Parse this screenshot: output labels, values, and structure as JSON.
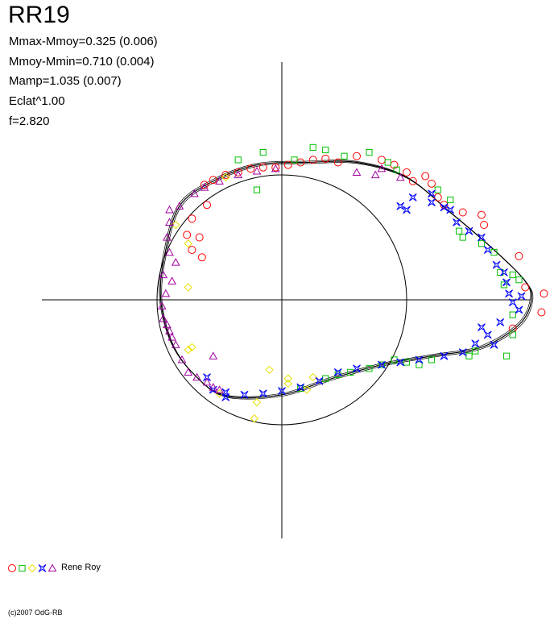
{
  "header": {
    "title": "RR19",
    "stats": [
      "Mmax-Mmoy=0.325 (0.006)",
      "Mmoy-Mmin=0.710 (0.004)",
      "Mamp=1.035 (0.007)",
      "Eclat^1.00",
      "f=2.820"
    ]
  },
  "legend": {
    "label": "Rene Roy",
    "symbols": [
      {
        "name": "circle",
        "color": "#ff0000"
      },
      {
        "name": "square",
        "color": "#00c000"
      },
      {
        "name": "diamond",
        "color": "#e8e000"
      },
      {
        "name": "star",
        "color": "#0000ff"
      },
      {
        "name": "triangle",
        "color": "#a000a0"
      }
    ]
  },
  "footer": {
    "copyright": "(c)2007 OdG-RB"
  },
  "chart_data": {
    "type": "scatter",
    "x_range": [
      -1.95,
      2.15
    ],
    "y_range": [
      -1.95,
      1.95
    ],
    "reference_circle_radius": 1.0,
    "curve_color": "#000000",
    "fit_curve": [
      [
        -0.82,
        0.75
      ],
      [
        -0.55,
        0.95
      ],
      [
        -0.2,
        1.08
      ],
      [
        0.2,
        1.1
      ],
      [
        0.6,
        1.1
      ],
      [
        1.0,
        0.98
      ],
      [
        1.35,
        0.7
      ],
      [
        1.7,
        0.4
      ],
      [
        1.95,
        0.15
      ],
      [
        2.0,
        0.0
      ],
      [
        1.9,
        -0.2
      ],
      [
        1.6,
        -0.38
      ],
      [
        1.2,
        -0.45
      ],
      [
        0.8,
        -0.52
      ],
      [
        0.4,
        -0.63
      ],
      [
        0.0,
        -0.76
      ],
      [
        -0.45,
        -0.77
      ],
      [
        -0.7,
        -0.6
      ],
      [
        -0.88,
        -0.35
      ],
      [
        -0.97,
        0.0
      ],
      [
        -0.94,
        0.35
      ],
      [
        -0.82,
        0.75
      ]
    ],
    "series": [
      {
        "symbol": "circle",
        "color": "#ff0000",
        "points": [
          [
            -0.62,
            0.92
          ],
          [
            -0.55,
            0.96
          ],
          [
            -0.45,
            1.0
          ],
          [
            -0.35,
            1.02
          ],
          [
            -0.25,
            1.05
          ],
          [
            -0.15,
            1.06
          ],
          [
            -0.05,
            1.06
          ],
          [
            0.05,
            1.08
          ],
          [
            0.15,
            1.1
          ],
          [
            0.25,
            1.12
          ],
          [
            0.35,
            1.13
          ],
          [
            0.45,
            1.1
          ],
          [
            0.6,
            1.15
          ],
          [
            0.8,
            1.12
          ],
          [
            0.9,
            1.08
          ],
          [
            1.0,
            1.02
          ],
          [
            1.05,
            0.95
          ],
          [
            1.15,
            0.99
          ],
          [
            1.2,
            0.93
          ],
          [
            1.25,
            0.82
          ],
          [
            1.3,
            0.76
          ],
          [
            1.45,
            0.7
          ],
          [
            1.6,
            0.68
          ],
          [
            1.62,
            0.6
          ],
          [
            -0.72,
            0.65
          ],
          [
            -0.6,
            0.76
          ],
          [
            -0.76,
            0.52
          ],
          [
            -0.66,
            0.5
          ],
          [
            -0.64,
            0.34
          ],
          [
            -0.72,
            0.4
          ],
          [
            1.9,
            0.35
          ],
          [
            1.95,
            0.1
          ],
          [
            2.08,
            -0.1
          ],
          [
            2.1,
            0.05
          ],
          [
            1.85,
            -0.23
          ]
        ]
      },
      {
        "symbol": "square",
        "color": "#00c000",
        "points": [
          [
            -0.15,
            1.18
          ],
          [
            -0.35,
            1.12
          ],
          [
            -0.2,
            0.88
          ],
          [
            0.1,
            1.12
          ],
          [
            0.25,
            1.22
          ],
          [
            0.35,
            1.2
          ],
          [
            0.5,
            1.15
          ],
          [
            0.7,
            1.18
          ],
          [
            0.85,
            1.1
          ],
          [
            0.92,
            1.04
          ],
          [
            1.25,
            0.88
          ],
          [
            1.35,
            0.8
          ],
          [
            1.42,
            0.55
          ],
          [
            1.45,
            0.5
          ],
          [
            1.6,
            0.45
          ],
          [
            1.7,
            0.38
          ],
          [
            1.75,
            0.22
          ],
          [
            1.78,
            0.12
          ],
          [
            1.85,
            0.2
          ],
          [
            1.9,
            0.16
          ],
          [
            1.85,
            -0.28
          ],
          [
            1.8,
            -0.45
          ],
          [
            1.5,
            -0.45
          ],
          [
            1.2,
            -0.48
          ],
          [
            1.0,
            -0.5
          ],
          [
            0.8,
            -0.52
          ],
          [
            0.55,
            -0.58
          ],
          [
            0.45,
            -0.6
          ],
          [
            0.35,
            -0.63
          ],
          [
            0.15,
            -0.71
          ],
          [
            1.1,
            -0.52
          ],
          [
            0.9,
            -0.48
          ],
          [
            1.55,
            -0.41
          ],
          [
            1.85,
            -0.12
          ],
          [
            0.7,
            -0.55
          ]
        ]
      },
      {
        "symbol": "diamond",
        "color": "#e8e000",
        "points": [
          [
            -0.45,
            0.98
          ],
          [
            -0.85,
            0.6
          ],
          [
            -0.75,
            0.45
          ],
          [
            -0.75,
            -0.4
          ],
          [
            -0.72,
            -0.38
          ],
          [
            -0.1,
            -0.56
          ],
          [
            0.05,
            -0.67
          ],
          [
            0.2,
            -0.72
          ],
          [
            0.25,
            -0.62
          ],
          [
            0.05,
            -0.63
          ],
          [
            -0.2,
            -0.82
          ],
          [
            -0.22,
            -0.95
          ],
          [
            -0.5,
            -0.75
          ],
          [
            -0.75,
            0.1
          ]
        ]
      },
      {
        "symbol": "star",
        "color": "#0000ff",
        "points": [
          [
            0.95,
            0.75
          ],
          [
            1.0,
            0.72
          ],
          [
            1.05,
            0.82
          ],
          [
            1.2,
            0.85
          ],
          [
            1.3,
            0.74
          ],
          [
            1.4,
            0.62
          ],
          [
            1.5,
            0.55
          ],
          [
            1.6,
            0.5
          ],
          [
            1.65,
            0.4
          ],
          [
            1.72,
            0.28
          ],
          [
            1.78,
            0.22
          ],
          [
            1.8,
            0.14
          ],
          [
            1.82,
            0.05
          ],
          [
            1.85,
            -0.02
          ],
          [
            1.9,
            -0.08
          ],
          [
            1.92,
            0.03
          ],
          [
            1.75,
            -0.18
          ],
          [
            1.65,
            -0.28
          ],
          [
            1.55,
            -0.35
          ],
          [
            1.45,
            -0.42
          ],
          [
            1.3,
            -0.45
          ],
          [
            1.1,
            -0.48
          ],
          [
            0.95,
            -0.5
          ],
          [
            0.8,
            -0.52
          ],
          [
            0.6,
            -0.55
          ],
          [
            0.45,
            -0.58
          ],
          [
            0.3,
            -0.65
          ],
          [
            0.15,
            -0.7
          ],
          [
            0.0,
            -0.73
          ],
          [
            -0.15,
            -0.75
          ],
          [
            -0.3,
            -0.76
          ],
          [
            -0.45,
            -0.74
          ],
          [
            -0.55,
            -0.72
          ],
          [
            -0.6,
            -0.62
          ],
          [
            -0.45,
            -0.78
          ],
          [
            1.2,
            0.78
          ],
          [
            1.35,
            0.72
          ],
          [
            1.6,
            -0.22
          ],
          [
            1.7,
            -0.36
          ]
        ]
      },
      {
        "symbol": "triangle",
        "color": "#a000a0",
        "points": [
          [
            -0.9,
            0.72
          ],
          [
            -0.82,
            0.75
          ],
          [
            -0.7,
            0.85
          ],
          [
            -0.62,
            0.9
          ],
          [
            -0.5,
            0.95
          ],
          [
            -0.35,
            1.0
          ],
          [
            -0.2,
            1.03
          ],
          [
            -0.05,
            1.05
          ],
          [
            0.8,
            1.05
          ],
          [
            0.95,
            0.98
          ],
          [
            0.75,
            1.0
          ],
          [
            0.6,
            1.02
          ],
          [
            -0.92,
            0.5
          ],
          [
            -0.9,
            0.38
          ],
          [
            -0.95,
            0.2
          ],
          [
            -0.93,
            0.05
          ],
          [
            -0.96,
            -0.05
          ],
          [
            -0.95,
            -0.15
          ],
          [
            -0.92,
            -0.2
          ],
          [
            -0.9,
            -0.25
          ],
          [
            -0.88,
            -0.3
          ],
          [
            -0.85,
            -0.36
          ],
          [
            -0.8,
            -0.48
          ],
          [
            -0.75,
            -0.58
          ],
          [
            -0.68,
            -0.62
          ],
          [
            -0.6,
            -0.66
          ],
          [
            -0.55,
            -0.7
          ],
          [
            -0.5,
            -0.72
          ],
          [
            -0.85,
            0.3
          ],
          [
            -0.88,
            0.15
          ],
          [
            -0.9,
            0.62
          ],
          [
            -0.55,
            -0.45
          ]
        ]
      }
    ]
  }
}
